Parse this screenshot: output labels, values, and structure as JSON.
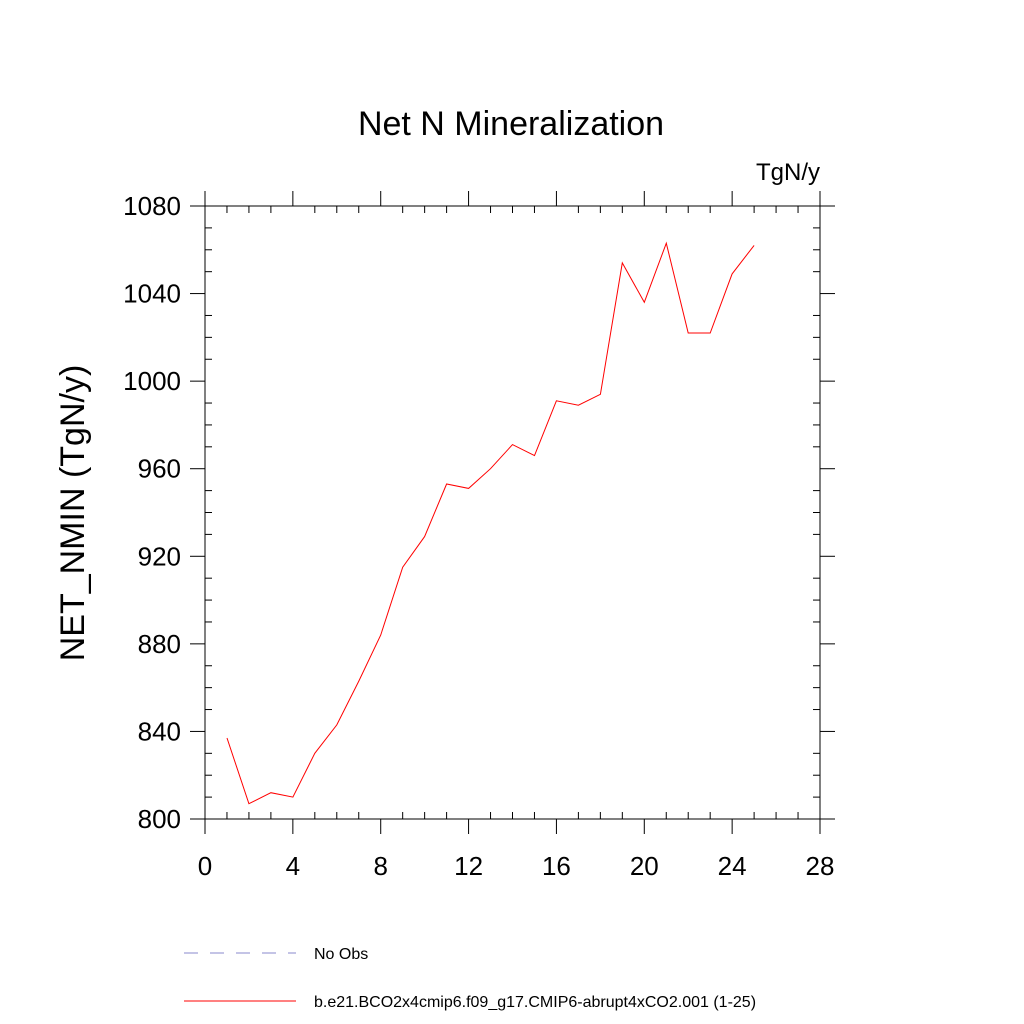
{
  "chart_data": {
    "type": "line",
    "title": "Net N Mineralization",
    "units_label": "TgN/y",
    "ylabel": "NET_NMIN  (TgN/y)",
    "xlabel": "",
    "xlim": [
      0,
      28
    ],
    "ylim": [
      800,
      1080
    ],
    "xticks": [
      0,
      4,
      8,
      12,
      16,
      20,
      24,
      28
    ],
    "xticks_minor": [
      1,
      2,
      3,
      5,
      6,
      7,
      9,
      10,
      11,
      13,
      14,
      15,
      17,
      18,
      19,
      21,
      22,
      23,
      25,
      26,
      27
    ],
    "yticks": [
      800,
      840,
      880,
      920,
      960,
      1000,
      1040,
      1080
    ],
    "yticks_minor": [
      810,
      820,
      830,
      850,
      860,
      870,
      890,
      900,
      910,
      930,
      940,
      950,
      970,
      980,
      990,
      1010,
      1020,
      1030,
      1050,
      1060,
      1070
    ],
    "grid": false,
    "series": [
      {
        "name": "b.e21.BCO2x4cmip6.f09_g17.CMIP6-abrupt4xCO2.001 (1-25)",
        "color": "#ff0000",
        "x": [
          1,
          2,
          3,
          4,
          5,
          6,
          7,
          8,
          9,
          10,
          11,
          12,
          13,
          14,
          15,
          16,
          17,
          18,
          19,
          20,
          21,
          22,
          23,
          24,
          25
        ],
        "values": [
          837,
          807,
          812,
          810,
          830,
          843,
          863,
          884,
          915,
          929,
          953,
          951,
          960,
          971,
          966,
          991,
          989,
          994,
          1054,
          1036,
          1063,
          1022,
          1022,
          1049,
          1062
        ]
      }
    ],
    "legend": [
      {
        "label": "No Obs",
        "color": "#8888cc",
        "style": "dashed"
      },
      {
        "label": "b.e21.BCO2x4cmip6.f09_g17.CMIP6-abrupt4xCO2.001 (1-25)",
        "color": "#ff0000",
        "style": "solid"
      }
    ],
    "legend_position": "bottom"
  }
}
